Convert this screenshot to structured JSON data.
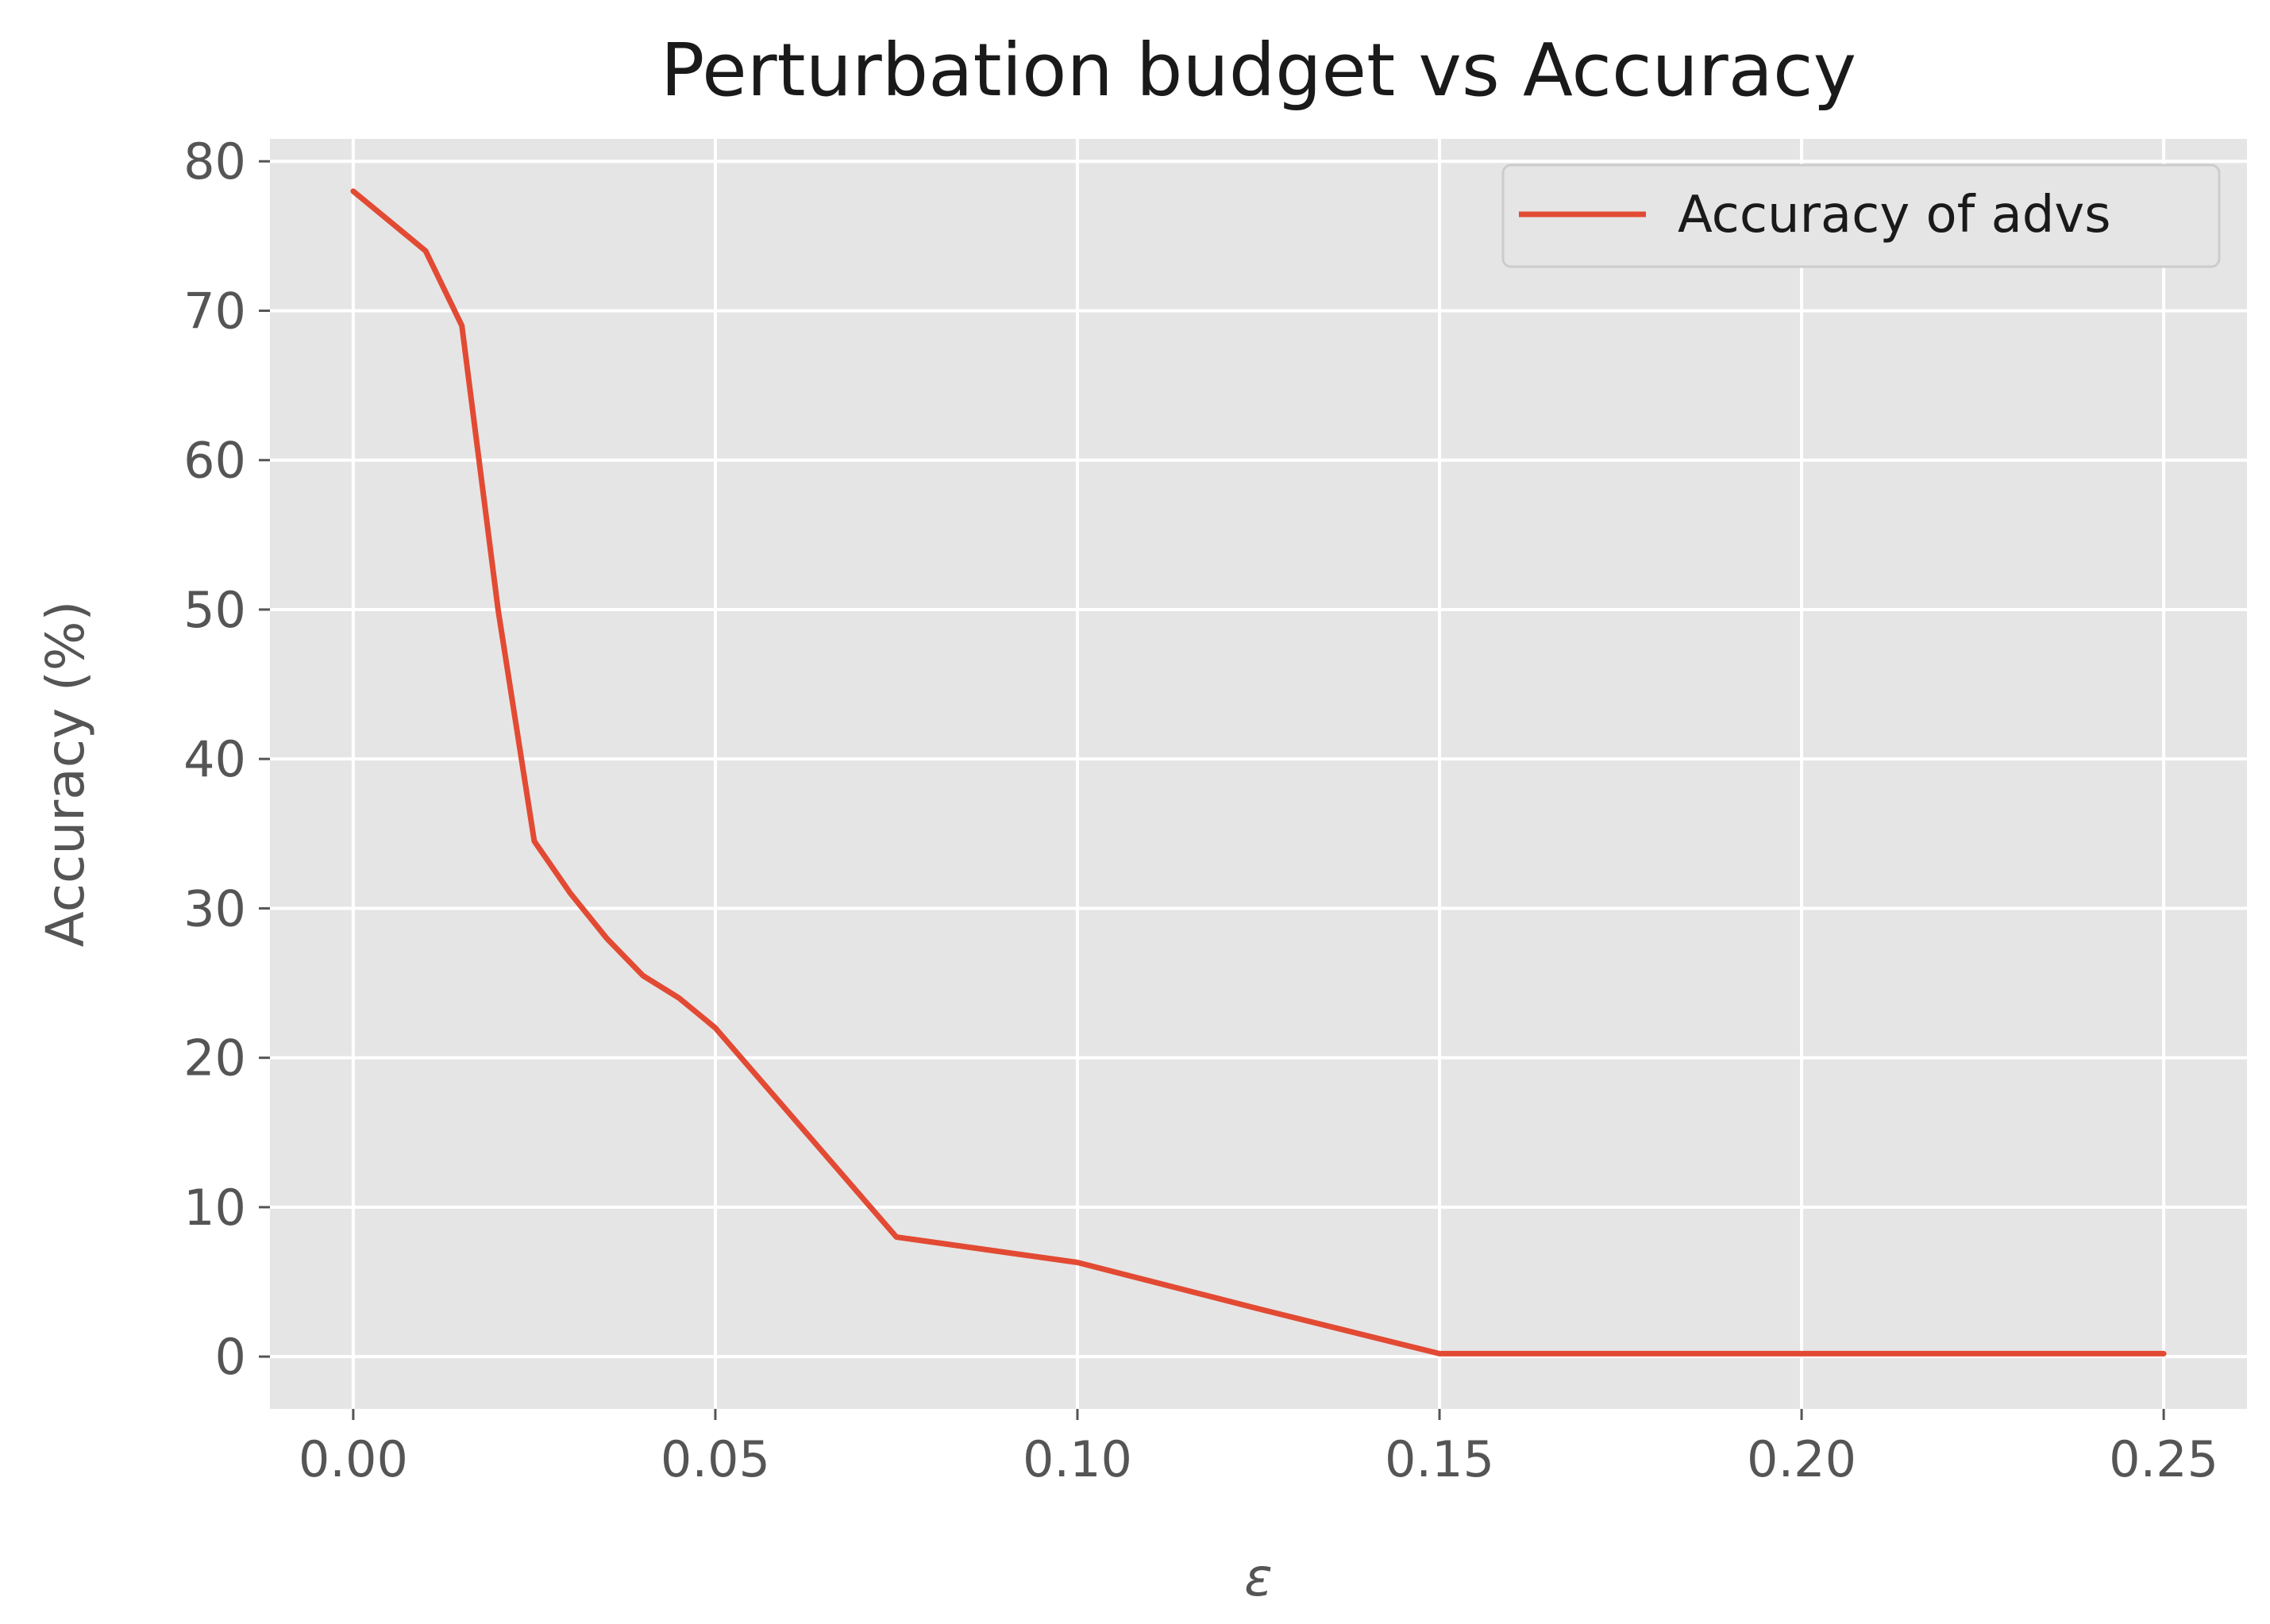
{
  "chart_data": {
    "type": "line",
    "title": "Perturbation budget vs Accuracy",
    "xlabel": "ε",
    "ylabel": "Accuracy (%)",
    "xlim": [
      -0.0115,
      0.2615
    ],
    "ylim": [
      -3.5,
      81.5
    ],
    "x_ticks": [
      0.0,
      0.05,
      0.1,
      0.15,
      0.2,
      0.25
    ],
    "x_tick_labels": [
      "0.00",
      "0.05",
      "0.10",
      "0.15",
      "0.20",
      "0.25"
    ],
    "y_ticks": [
      0,
      10,
      20,
      30,
      40,
      50,
      60,
      70,
      80
    ],
    "y_tick_labels": [
      "0",
      "10",
      "20",
      "30",
      "40",
      "50",
      "60",
      "70",
      "80"
    ],
    "grid": true,
    "legend_position": "upper right",
    "colors": {
      "plot_background": "#e5e5e5",
      "grid": "#ffffff",
      "line": "#e24a33",
      "tick": "#555555",
      "legend_background": "#e5e5e5",
      "legend_border": "#cccccc"
    },
    "series": [
      {
        "name": "Accuracy of advs",
        "x": [
          0.0,
          0.005,
          0.01,
          0.015,
          0.02,
          0.025,
          0.03,
          0.035,
          0.04,
          0.045,
          0.05,
          0.075,
          0.1,
          0.125,
          0.15,
          0.175,
          0.2,
          0.225,
          0.25
        ],
        "y": [
          78.0,
          76.0,
          74.0,
          69.0,
          50.0,
          34.5,
          31.0,
          28.0,
          25.5,
          24.0,
          22.0,
          8.0,
          6.3,
          3.2,
          0.2,
          0.2,
          0.2,
          0.2,
          0.2
        ]
      }
    ]
  }
}
